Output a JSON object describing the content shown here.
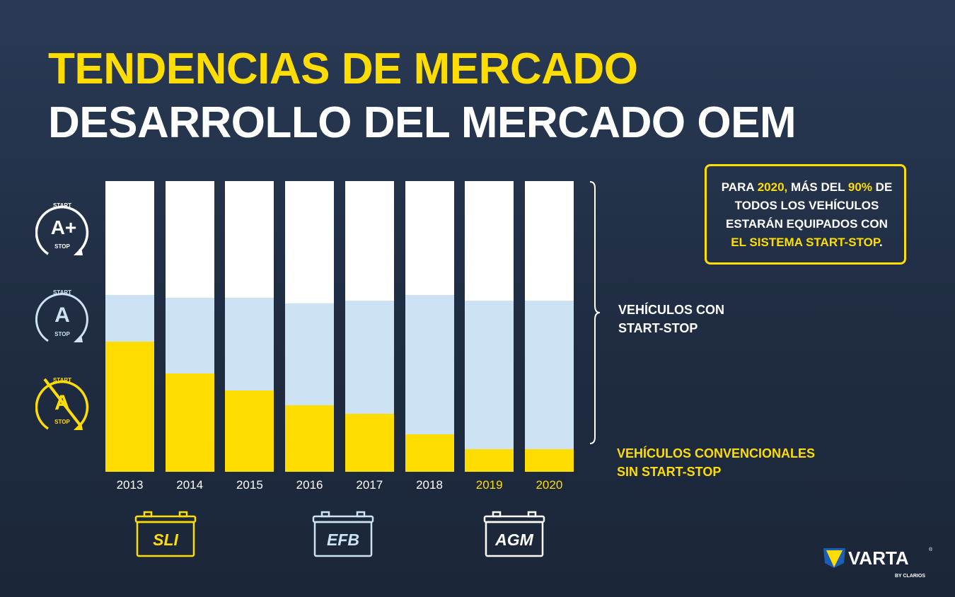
{
  "header": {
    "title1": "TENDENCIAS DE MERCADO",
    "title2": "DESARROLLO DEL MERCADO OEM"
  },
  "colors": {
    "conventional": "#ffdd00",
    "efb": "#cde2f5",
    "agm": "#ffffff",
    "background": "#24324b"
  },
  "chart_data": {
    "type": "bar",
    "stacked": true,
    "unit": "percent share (estimated)",
    "categories": [
      "2013",
      "2014",
      "2015",
      "2016",
      "2017",
      "2018",
      "2019",
      "2020"
    ],
    "highlighted_categories": [
      "2019",
      "2020"
    ],
    "series": [
      {
        "name": "Convencional sin Start-Stop (SLI)",
        "icon": "start-stop-off",
        "values": [
          45,
          34,
          28,
          23,
          20,
          13,
          8,
          8
        ]
      },
      {
        "name": "Start-Stop (EFB)",
        "icon": "start-stop-a",
        "values": [
          16,
          26,
          32,
          35,
          39,
          48,
          51,
          51
        ]
      },
      {
        "name": "Start-Stop (AGM)",
        "icon": "start-stop-a-plus",
        "values": [
          39,
          40,
          40,
          42,
          41,
          39,
          41,
          41
        ]
      }
    ],
    "ylim": [
      0,
      100
    ]
  },
  "icons": {
    "start": "START",
    "stop": "STOP",
    "a": "A",
    "aplus": "A+"
  },
  "labels": {
    "with_ss_1": "VEHÍCULOS CON",
    "with_ss_2": "START-STOP",
    "conv_1": "VEHÍCULOS CONVENCIONALES",
    "conv_2": "SIN START-STOP"
  },
  "callout": {
    "p1": "PARA ",
    "p2": "2020,",
    "p3": " MÁS DEL ",
    "p4": "90%",
    "p5": " DE TODOS LOS VEHÍCULOS ESTARÁN EQUIPADOS CON ",
    "p6": "EL SISTEMA START-STOP",
    "p7": "."
  },
  "batteries": [
    {
      "label": "SLI",
      "color": "#ffdd00"
    },
    {
      "label": "EFB",
      "color": "#cde2f5"
    },
    {
      "label": "AGM",
      "color": "#ffffff"
    }
  ],
  "logo": {
    "brand": "VARTA",
    "sub": "BY CLARIOS",
    "reg": "®"
  }
}
